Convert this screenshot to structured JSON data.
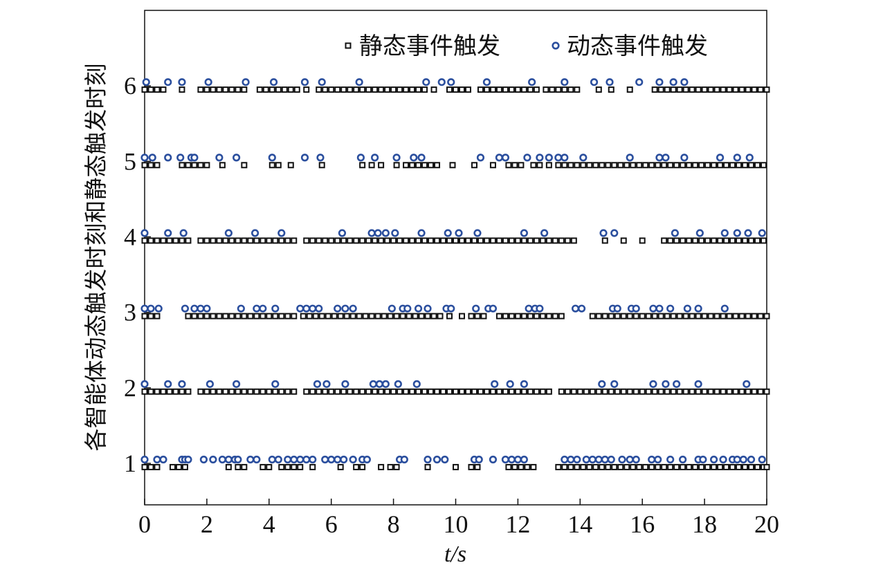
{
  "chart_data": {
    "type": "scatter",
    "xlabel": "t/s",
    "ylabel": "各智能体动态触发时刻和静态触发时刻",
    "xlim": [
      0,
      20
    ],
    "xticks": [
      0,
      2,
      4,
      6,
      8,
      10,
      12,
      14,
      16,
      18,
      20
    ],
    "ylim": [
      0.45,
      7
    ],
    "yticks": [
      1,
      2,
      3,
      4,
      5,
      6
    ],
    "legend": "upper right",
    "series": [
      {
        "name": "静态事件触发",
        "color": "#111111",
        "marker": "square",
        "values": [
          0.95,
          1.95,
          2.95,
          3.95,
          4.95,
          5.95
        ],
        "x": [
          [
            0,
            0.2,
            0.4,
            0.9,
            1.1,
            1.3,
            2.7,
            3,
            3.2,
            3.8,
            4,
            4.4,
            4.6,
            4.8,
            5,
            5.4,
            6.3,
            6.8,
            7,
            7.6,
            7.9,
            8.1,
            9.1,
            10,
            10.5,
            10.7,
            11.7,
            11.9,
            12.1,
            12.3,
            12.5,
            13.3,
            13.5,
            13.7,
            13.9,
            14.1,
            14.3,
            14.5,
            14.7,
            14.9,
            15.1,
            15.3,
            15.5,
            15.7,
            15.9,
            16.1,
            16.3,
            16.5,
            16.7,
            16.9,
            17.1,
            17.3,
            17.5,
            17.7,
            17.9,
            18.1,
            18.3,
            18.5,
            18.7,
            18.9,
            19.1,
            19.3,
            19.5,
            19.7,
            19.9,
            20
          ],
          [
            0,
            0.2,
            0.4,
            0.6,
            0.8,
            1,
            1.2,
            1.4,
            1.8,
            2,
            2.2,
            2.4,
            2.6,
            2.8,
            3,
            3.2,
            3.4,
            3.6,
            3.8,
            4,
            4.2,
            4.4,
            4.6,
            4.8,
            5.2,
            5.4,
            5.6,
            5.8,
            6,
            6.2,
            6.4,
            6.6,
            6.8,
            7,
            7.2,
            7.4,
            7.6,
            7.8,
            8,
            8.2,
            8.4,
            8.6,
            8.8,
            9,
            9.2,
            9.4,
            9.6,
            9.8,
            10,
            10.2,
            10.4,
            10.6,
            10.8,
            11,
            11.2,
            11.4,
            11.6,
            11.8,
            12,
            12.2,
            12.4,
            12.6,
            12.8,
            13,
            13.4,
            13.6,
            13.8,
            14,
            14.2,
            14.4,
            14.6,
            14.8,
            15,
            15.2,
            15.4,
            15.6,
            15.8,
            16,
            16.2,
            16.4,
            16.6,
            16.8,
            17,
            17.2,
            17.4,
            17.6,
            17.8,
            18,
            18.2,
            18.4,
            18.6,
            18.8,
            19,
            19.2,
            19.4,
            19.6,
            19.8,
            20
          ],
          [
            0,
            0.2,
            0.4,
            1.4,
            1.6,
            1.8,
            2,
            2.2,
            2.4,
            2.6,
            2.8,
            3,
            3.2,
            3.4,
            3.6,
            3.8,
            4,
            4.2,
            4.4,
            4.6,
            4.8,
            5.1,
            5.3,
            5.5,
            5.7,
            5.9,
            6.1,
            6.3,
            6.5,
            6.7,
            6.9,
            7.1,
            7.3,
            7.5,
            7.7,
            7.9,
            8.1,
            8.3,
            8.5,
            8.7,
            8.9,
            9.1,
            9.3,
            9.5,
            9.8,
            10.2,
            10.5,
            10.7,
            10.9,
            11.4,
            11.6,
            11.8,
            12,
            12.2,
            12.4,
            12.6,
            12.8,
            13,
            13.2,
            13.4,
            14.4,
            14.6,
            14.8,
            15,
            15.2,
            15.4,
            15.6,
            15.8,
            16,
            16.2,
            16.4,
            16.6,
            16.8,
            17,
            17.2,
            17.4,
            17.6,
            17.8,
            18,
            18.2,
            18.4,
            18.6,
            18.8,
            19,
            19.2,
            19.4,
            19.6,
            19.8,
            20
          ],
          [
            0,
            0.2,
            0.4,
            0.6,
            0.8,
            1,
            1.2,
            1.4,
            1.8,
            2,
            2.2,
            2.4,
            2.6,
            2.8,
            3,
            3.2,
            3.4,
            3.6,
            3.8,
            4,
            4.2,
            4.4,
            4.6,
            4.8,
            5.2,
            5.4,
            5.6,
            5.8,
            6,
            6.2,
            6.4,
            6.6,
            6.8,
            7,
            7.2,
            7.4,
            7.6,
            7.8,
            8,
            8.2,
            8.4,
            8.6,
            8.8,
            9,
            9.2,
            9.4,
            9.6,
            9.8,
            10,
            10.2,
            10.4,
            10.6,
            10.8,
            11,
            11.2,
            11.4,
            11.6,
            11.8,
            12,
            12.2,
            12.4,
            12.6,
            12.8,
            13,
            13.2,
            13.4,
            13.6,
            13.8,
            14.8,
            15.4,
            16,
            16.7,
            16.9,
            17.1,
            17.3,
            17.5,
            17.7,
            17.9,
            18.1,
            18.3,
            18.5,
            18.7,
            18.9,
            19.1,
            19.3,
            19.5,
            19.7,
            19.9
          ],
          [
            0,
            0.2,
            0.4,
            1.2,
            1.4,
            1.6,
            1.8,
            2,
            2.5,
            3.2,
            4.1,
            4.3,
            4.7,
            5.7,
            7,
            7.3,
            7.6,
            8.1,
            8.4,
            8.6,
            8.8,
            9,
            9.2,
            9.4,
            9.9,
            10.6,
            11.2,
            11.7,
            11.9,
            12.1,
            12.5,
            12.7,
            13,
            13.3,
            13.5,
            13.7,
            13.9,
            14.1,
            14.3,
            14.5,
            14.7,
            14.9,
            15.1,
            15.3,
            15.5,
            15.7,
            15.9,
            16.1,
            16.3,
            16.5,
            16.7,
            16.9,
            17.1,
            17.3,
            17.5,
            17.7,
            17.9,
            18.1,
            18.3,
            18.5,
            18.7,
            18.9,
            19.1,
            19.3,
            19.5,
            19.7,
            19.9
          ],
          [
            0,
            0.2,
            0.4,
            0.6,
            1.2,
            1.8,
            2,
            2.2,
            2.4,
            2.6,
            2.8,
            3,
            3.2,
            3.7,
            3.9,
            4.1,
            4.3,
            4.5,
            4.7,
            4.9,
            5.2,
            5.6,
            5.8,
            6,
            6.2,
            6.4,
            6.6,
            6.8,
            7,
            7.2,
            7.4,
            7.6,
            7.8,
            8,
            8.2,
            8.4,
            8.6,
            8.8,
            9,
            9.3,
            9.8,
            10,
            10.2,
            10.4,
            10.8,
            11,
            11.2,
            11.4,
            11.6,
            11.8,
            12,
            12.2,
            12.4,
            12.6,
            12.9,
            13.1,
            13.3,
            13.5,
            13.7,
            13.9,
            14.6,
            15,
            15.6,
            16.4,
            16.6,
            16.8,
            17,
            17.2,
            17.4,
            17.6,
            17.8,
            18,
            18.2,
            18.4,
            18.6,
            18.8,
            19,
            19.2,
            19.4,
            19.6,
            19.8,
            20
          ]
        ]
      },
      {
        "name": "动态事件触发",
        "color": "#2b4f9e",
        "marker": "circle",
        "values": [
          1.05,
          2.05,
          3.05,
          4.05,
          5.05,
          6.05
        ],
        "x": [
          [
            0,
            0.4,
            0.6,
            1.2,
            1.3,
            1.4,
            1.9,
            2.2,
            2.5,
            2.7,
            2.9,
            3,
            3.4,
            3.6,
            4.1,
            4.3,
            4.6,
            4.8,
            5,
            5.2,
            5.4,
            5.8,
            6,
            6.2,
            6.4,
            6.7,
            7,
            7.15,
            8.2,
            8.35,
            9.1,
            9.4,
            9.65,
            10.6,
            10.75,
            11.2,
            11.6,
            11.8,
            12,
            12.2,
            13.5,
            13.7,
            13.9,
            14.2,
            14.4,
            14.6,
            14.8,
            15,
            15.35,
            15.6,
            15.8,
            16.3,
            16.5,
            16.9,
            17.3,
            17.8,
            17.95,
            18.3,
            18.6,
            18.9,
            19.05,
            19.25,
            19.5,
            19.85
          ],
          [
            0,
            0.75,
            1.2,
            2.1,
            2.95,
            4.2,
            5.55,
            5.85,
            6.45,
            7.35,
            7.55,
            7.75,
            8.15,
            8.75,
            11.25,
            11.75,
            12.2,
            14.7,
            15.1,
            16.35,
            16.75,
            17.1,
            17.8,
            19.35
          ],
          [
            0,
            0.2,
            0.45,
            1.3,
            1.6,
            1.8,
            2,
            3.1,
            3.6,
            3.8,
            4.2,
            5,
            5.2,
            5.4,
            5.6,
            6.2,
            6.45,
            6.7,
            7.95,
            8.3,
            8.45,
            8.8,
            9.1,
            9.7,
            9.85,
            10.65,
            11.05,
            11.2,
            12.35,
            12.55,
            12.7,
            13.85,
            14.05,
            15.05,
            15.2,
            15.65,
            15.8,
            16.35,
            16.55,
            16.9,
            17.45,
            17.8,
            18.65
          ],
          [
            0,
            0.75,
            1.25,
            2.7,
            3.55,
            4.4,
            6.35,
            7.3,
            7.5,
            7.75,
            8.05,
            8.9,
            9.75,
            10.1,
            10.7,
            12.2,
            12.85,
            14.75,
            15.1,
            17.05,
            17.85,
            18.65,
            19.05,
            19.4,
            19.85
          ],
          [
            0,
            0.25,
            0.75,
            1.15,
            1.5,
            1.6,
            2.4,
            2.95,
            4.1,
            5.15,
            5.65,
            6.95,
            7.4,
            8.1,
            8.65,
            8.9,
            10.8,
            11.4,
            11.6,
            12.3,
            12.7,
            13,
            13.3,
            13.5,
            14.1,
            15.6,
            16.55,
            16.75,
            17.35,
            18.5,
            19.05,
            19.45
          ],
          [
            0.05,
            0.75,
            1.2,
            2.05,
            3.25,
            4.15,
            5.15,
            5.7,
            6.9,
            9.05,
            9.55,
            9.85,
            11,
            12.45,
            13.5,
            14.45,
            14.95,
            15.9,
            16.55,
            17,
            17.35
          ]
        ]
      }
    ]
  }
}
